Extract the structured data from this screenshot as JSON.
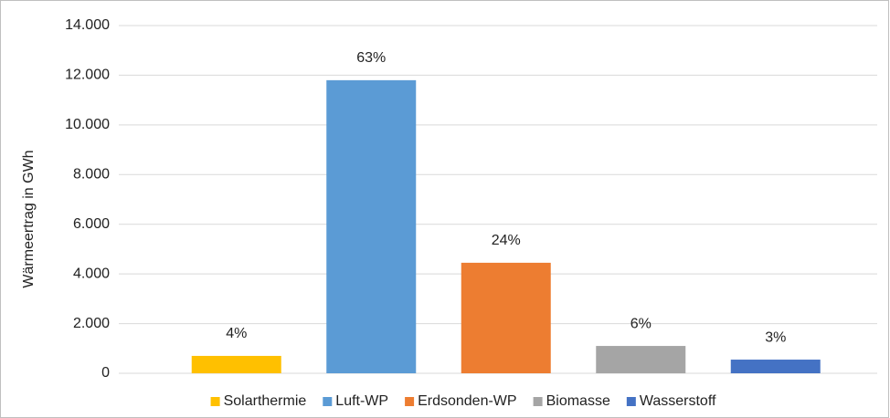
{
  "chart_data": {
    "type": "bar",
    "y_label": "Wärmeertrag in GWh",
    "categories": [
      "Solarthermie",
      "Luft-WP",
      "Erdsonden-WP",
      "Biomasse",
      "Wasserstoff"
    ],
    "values": [
      700,
      11800,
      4450,
      1100,
      550
    ],
    "share_labels": [
      "4%",
      "63%",
      "24%",
      "6%",
      "3%"
    ],
    "colors": [
      "#FFC000",
      "#5B9BD5",
      "#ED7D31",
      "#A5A5A5",
      "#4472C4"
    ],
    "ylim": [
      0,
      14000
    ],
    "yticks": [
      0,
      {
        "value": 2000,
        "label": "2.000"
      },
      {
        "value": 4000,
        "label": "4.000"
      },
      {
        "value": 6000,
        "label": "6.000"
      },
      {
        "value": 8000,
        "label": "8.000"
      },
      {
        "value": 10000,
        "label": "10.000"
      },
      {
        "value": 12000,
        "label": "12.000"
      },
      {
        "value": 14000,
        "label": "14.000"
      }
    ],
    "grid": true,
    "legend": "bottom"
  }
}
